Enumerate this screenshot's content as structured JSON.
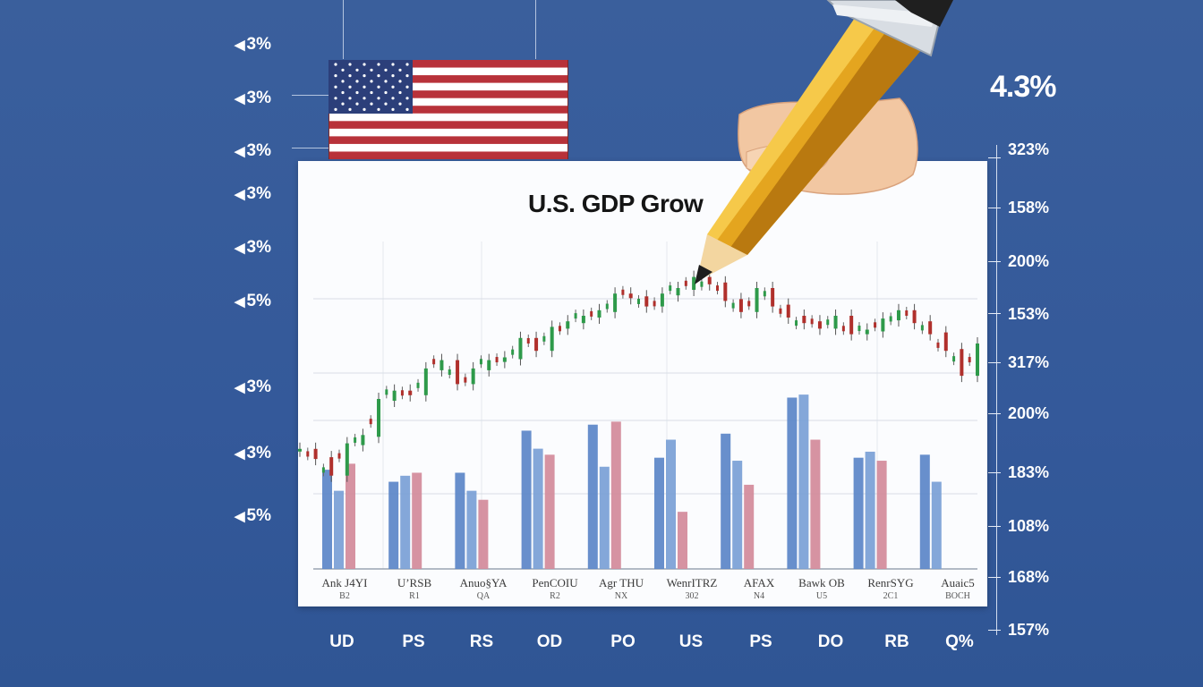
{
  "chart_data": {
    "type": "bar",
    "title": "U.S. GDP Grow",
    "left_axis_labels": [
      "3%",
      "3%",
      "3%",
      "3%",
      "3%",
      "5%",
      "3%",
      "3%",
      "5%"
    ],
    "right_axis_labels": [
      "323%",
      "158%",
      "200%",
      "153%",
      "317%",
      "200%",
      "183%",
      "108%",
      "168%",
      "157%"
    ],
    "highlight_value": "4.3%",
    "categories": [
      "Ank J4YI",
      "U’RSB",
      "Anuo§YA",
      "PenCOIU",
      "Agr THU",
      "WenrITRZ",
      "AFAX",
      "Bawk OB",
      "RenrSYG",
      "Auaic5"
    ],
    "category_codes": [
      "B2",
      "R1",
      "QA",
      "R2",
      "NX",
      "302",
      "N4",
      "U5",
      "2C1",
      "BOCH"
    ],
    "bottom_labels": [
      "UD",
      "PS",
      "RS",
      "OD",
      "PO",
      "US",
      "PS",
      "DO",
      "RB",
      "Q%"
    ],
    "series": [
      {
        "color": "#5b86c8",
        "values": [
          33,
          29,
          32,
          46,
          48,
          37,
          45,
          57,
          37,
          38
        ]
      },
      {
        "color": "#7aa0d6",
        "values": [
          26,
          31,
          26,
          40,
          34,
          43,
          36,
          58,
          39,
          29
        ]
      },
      {
        "color": "#d28a9a",
        "values": [
          35,
          32,
          23,
          38,
          49,
          19,
          28,
          43,
          36,
          0
        ]
      }
    ],
    "ylim": [
      0,
      100
    ],
    "trend_line": [
      12,
      9,
      3,
      14,
      17,
      30,
      33,
      32,
      41,
      44,
      36,
      41,
      44,
      45,
      52,
      48,
      56,
      58,
      60,
      62,
      68,
      67,
      64,
      68,
      70,
      74,
      72,
      66,
      62,
      70,
      64,
      60,
      58,
      56,
      60,
      54,
      55,
      59,
      62,
      58,
      54,
      48,
      39,
      50
    ],
    "grid": true
  },
  "colors": {
    "background": "#34599a",
    "panel": "#fbfcfe",
    "candle_up": "#2e9a4a",
    "candle_down": "#b0302c"
  },
  "icons": {
    "flag": "us-flag-icon",
    "pencil": "pencil-icon",
    "hand": "hand-icon"
  }
}
